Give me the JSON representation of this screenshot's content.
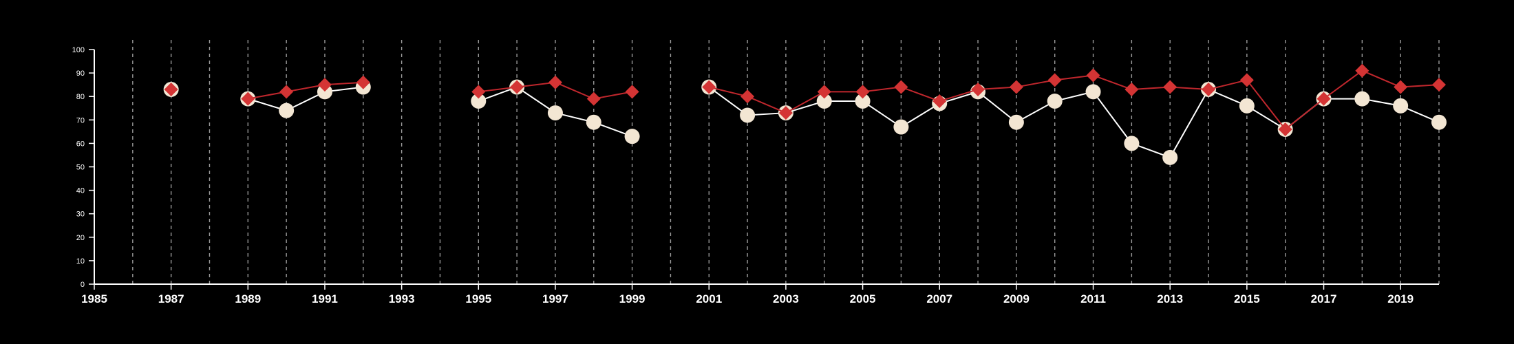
{
  "chart_data": {
    "type": "line",
    "title": "",
    "xlabel": "",
    "ylabel": "",
    "xlim": [
      1985,
      2020
    ],
    "ylim": [
      0,
      100
    ],
    "y_ticks": [
      0,
      10,
      20,
      30,
      40,
      50,
      60,
      70,
      80,
      90,
      100
    ],
    "x_ticks": [
      1985,
      1987,
      1989,
      1991,
      1993,
      1995,
      1997,
      1999,
      2001,
      2003,
      2005,
      2007,
      2009,
      2011,
      2013,
      2015,
      2017,
      2019
    ],
    "grid": {
      "vertical": true,
      "style": "dashed",
      "every_year_from": 1986,
      "to": 2020
    },
    "legend": "none",
    "series": [
      {
        "marker": "circle",
        "line_color": "#ffffff",
        "marker_color": "#f3e6d3",
        "points": [
          [
            1987,
            83
          ],
          [
            1989,
            79
          ],
          [
            1990,
            74
          ],
          [
            1991,
            82
          ],
          [
            1992,
            84
          ],
          [
            1995,
            78
          ],
          [
            1996,
            84
          ],
          [
            1997,
            73
          ],
          [
            1998,
            69
          ],
          [
            1999,
            63
          ],
          [
            2001,
            84
          ],
          [
            2002,
            72
          ],
          [
            2003,
            73
          ],
          [
            2004,
            78
          ],
          [
            2005,
            78
          ],
          [
            2006,
            67
          ],
          [
            2007,
            77
          ],
          [
            2008,
            82
          ],
          [
            2009,
            69
          ],
          [
            2010,
            78
          ],
          [
            2011,
            82
          ],
          [
            2012,
            60
          ],
          [
            2013,
            54
          ],
          [
            2014,
            83
          ],
          [
            2015,
            76
          ],
          [
            2016,
            66
          ],
          [
            2017,
            79
          ],
          [
            2018,
            79
          ],
          [
            2019,
            76
          ],
          [
            2020,
            69
          ]
        ],
        "segments": [
          [
            1987,
            1987
          ],
          [
            1989,
            1992
          ],
          [
            1995,
            1999
          ],
          [
            2001,
            2020
          ]
        ]
      },
      {
        "marker": "diamond",
        "line_color": "#c0272d",
        "marker_color": "#d43434",
        "points": [
          [
            1987,
            83
          ],
          [
            1989,
            79
          ],
          [
            1990,
            82
          ],
          [
            1991,
            85
          ],
          [
            1992,
            86
          ],
          [
            1995,
            82
          ],
          [
            1996,
            84
          ],
          [
            1997,
            86
          ],
          [
            1998,
            79
          ],
          [
            1999,
            82
          ],
          [
            2001,
            84
          ],
          [
            2002,
            80
          ],
          [
            2003,
            73
          ],
          [
            2004,
            82
          ],
          [
            2005,
            82
          ],
          [
            2006,
            84
          ],
          [
            2007,
            78
          ],
          [
            2008,
            83
          ],
          [
            2009,
            84
          ],
          [
            2010,
            87
          ],
          [
            2011,
            89
          ],
          [
            2012,
            83
          ],
          [
            2013,
            84
          ],
          [
            2014,
            83
          ],
          [
            2015,
            87
          ],
          [
            2016,
            66
          ],
          [
            2017,
            79
          ],
          [
            2018,
            91
          ],
          [
            2019,
            84
          ],
          [
            2020,
            85
          ]
        ],
        "segments": [
          [
            1987,
            1987
          ],
          [
            1989,
            1992
          ],
          [
            1995,
            1999
          ],
          [
            2001,
            2020
          ]
        ]
      }
    ]
  }
}
